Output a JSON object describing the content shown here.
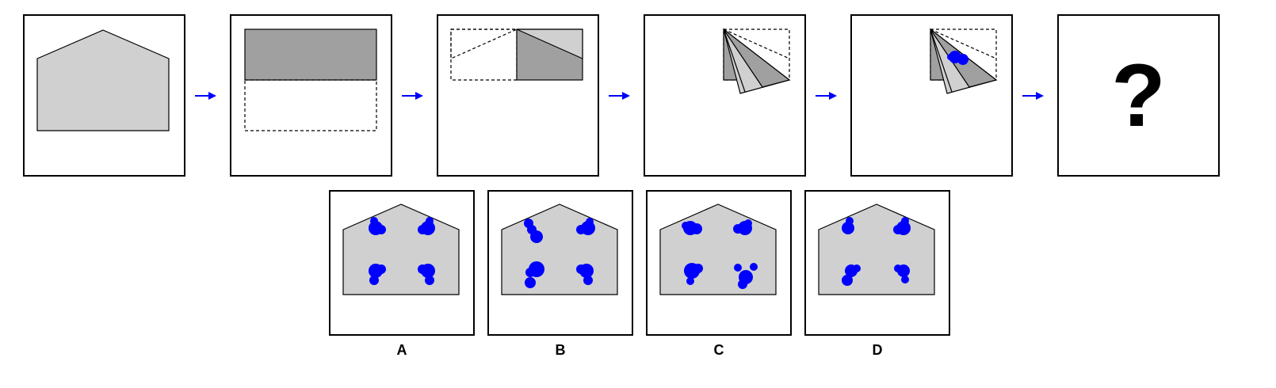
{
  "sequence": {
    "final_symbol": "?"
  },
  "options": [
    {
      "label": "A"
    },
    {
      "label": "B"
    },
    {
      "label": "C"
    },
    {
      "label": "D"
    }
  ],
  "colors": {
    "paper": "#d0d0d0",
    "paper_folded": "#a0a0a0",
    "hole": "#0000ff",
    "arrow": "#0000ff",
    "outline": "#000000"
  }
}
